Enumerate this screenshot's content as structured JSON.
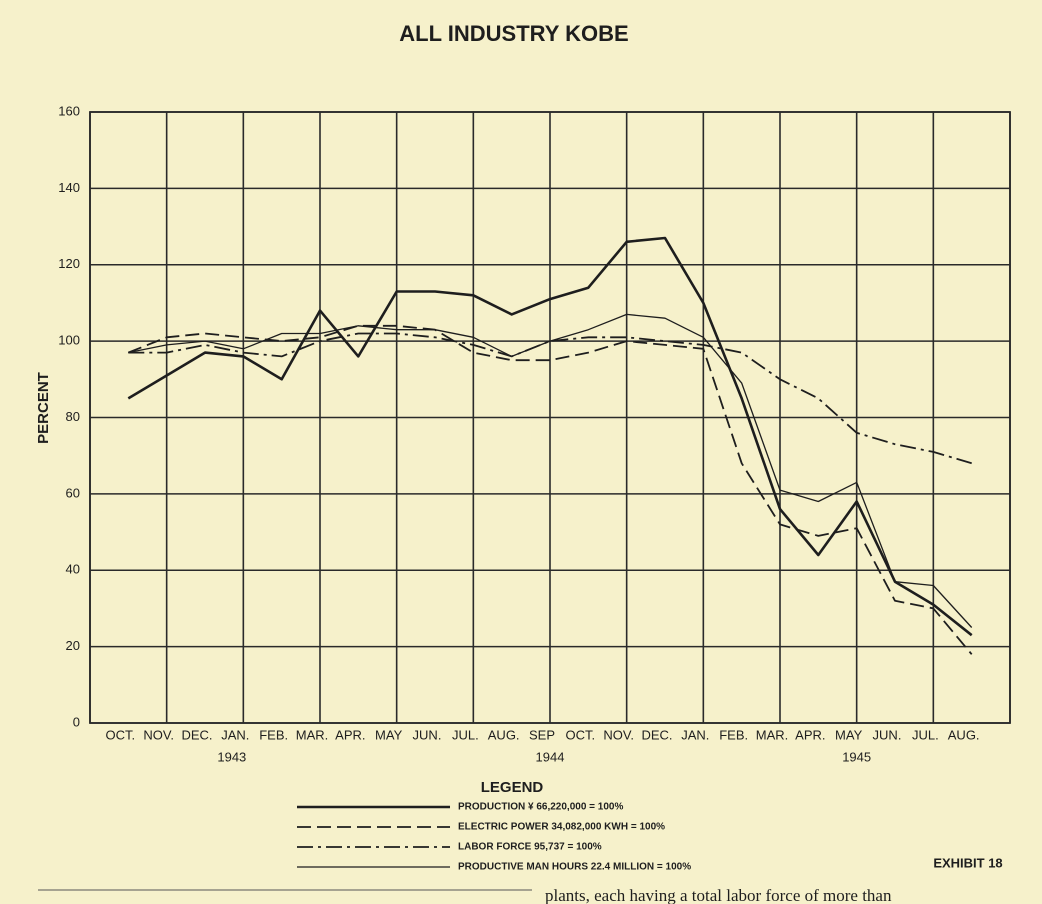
{
  "chart_data": {
    "type": "line",
    "title": "ALL INDUSTRY KOBE",
    "y_label": "PERCENT",
    "categories": [
      "OCT.",
      "NOV.",
      "DEC.",
      "JAN.",
      "FEB.",
      "MAR.",
      "APR.",
      "MAY",
      "JUN.",
      "JUL.",
      "AUG.",
      "SEP",
      "OCT.",
      "NOV.",
      "DEC.",
      "JAN.",
      "FEB.",
      "MAR.",
      "APR.",
      "MAY",
      "JUN.",
      "JUL.",
      "AUG."
    ],
    "year_labels": [
      "1943",
      "1944",
      "1945"
    ],
    "ylim": [
      0,
      160
    ],
    "yticks": [
      0,
      20,
      40,
      60,
      80,
      100,
      120,
      140,
      160
    ],
    "grid": true,
    "legend_title": "LEGEND",
    "series": [
      {
        "name": "PRODUCTION ¥ 66,220,000 = 100%",
        "color": "#1e1e1e",
        "line_style": "solid",
        "line_width": 2.6,
        "values": [
          85,
          91,
          97,
          96,
          90,
          108,
          96,
          113,
          113,
          112,
          107,
          111,
          114,
          126,
          127,
          110,
          85,
          56,
          44,
          58,
          37,
          31,
          23
        ]
      },
      {
        "name": "ELECTRIC POWER 34,082,000 KWH = 100%",
        "color": "#1e1e1e",
        "line_style": "dashed",
        "line_width": 1.8,
        "values": [
          97,
          101,
          102,
          101,
          100,
          101,
          104,
          104,
          103,
          97,
          95,
          95,
          97,
          100,
          99,
          98,
          68,
          52,
          49,
          51,
          32,
          30,
          18
        ]
      },
      {
        "name": "LABOR FORCE 95,737 = 100%",
        "color": "#1e1e1e",
        "line_style": "dashdot",
        "line_width": 1.8,
        "values": [
          97,
          97,
          99,
          97,
          96,
          100,
          102,
          102,
          101,
          99,
          96,
          100,
          101,
          101,
          100,
          99,
          97,
          90,
          85,
          76,
          73,
          71,
          68
        ]
      },
      {
        "name": "PRODUCTIVE MAN HOURS 22.4 MILLION = 100%",
        "color": "#1e1e1e",
        "line_style": "solid",
        "line_width": 1.3,
        "values": [
          97,
          99,
          100,
          98,
          102,
          102,
          104,
          103,
          103,
          101,
          96,
          100,
          103,
          107,
          106,
          101,
          89,
          61,
          58,
          63,
          37,
          36,
          25
        ]
      }
    ],
    "exhibit_label": "EXHIBIT 18",
    "footer_text": "plants, each having a total labor force of more than"
  }
}
